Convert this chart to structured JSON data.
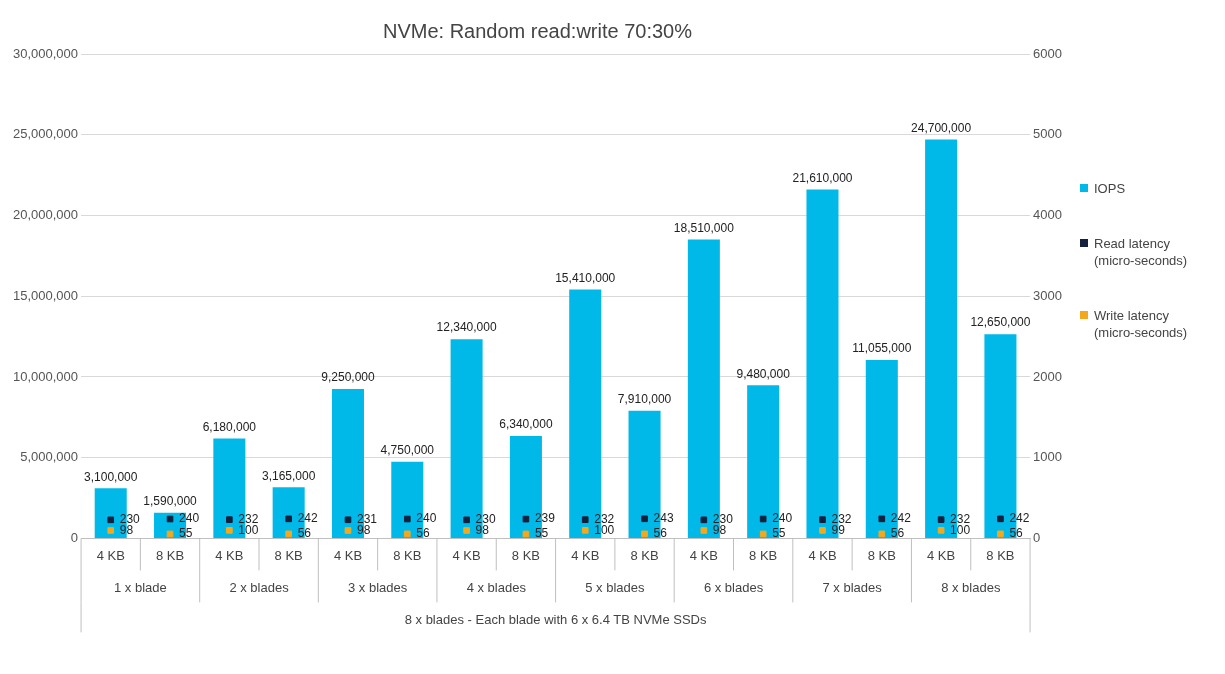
{
  "chart_data": {
    "type": "bar",
    "title": "NVMe: Random read:write 70:30%",
    "categories": [
      "4 KB",
      "8 KB",
      "4 KB",
      "8 KB",
      "4 KB",
      "8 KB",
      "4 KB",
      "8 KB",
      "4 KB",
      "8 KB",
      "4 KB",
      "8 KB",
      "4 KB",
      "8 KB",
      "4 KB",
      "8 KB"
    ],
    "xlabel": "8 x blades - Each blade with 6 x 6.4 TB NVMe SSDs",
    "annotations": [
      "1 x blade",
      "2 x blades",
      "3 x blades",
      "4 x blades",
      "5 x blades",
      "6 x blades",
      "7 x blades",
      "8 x blades"
    ],
    "series": [
      {
        "name": "IOPS",
        "color": "#00b9e8",
        "values": [
          3100000,
          1590000,
          6180000,
          3165000,
          9250000,
          4750000,
          12340000,
          6340000,
          15410000,
          7910000,
          18510000,
          9480000,
          21610000,
          11055000,
          24700000,
          12650000
        ],
        "value_labels": [
          "3,100,000",
          "1,590,000",
          "6,180,000",
          "3,165,000",
          "9,250,000",
          "4,750,000",
          "12,340,000",
          "6,340,000",
          "15,410,000",
          "7,910,000",
          "18,510,000",
          "9,480,000",
          "21,610,000",
          "11,055,000",
          "24,700,000",
          "12,650,000"
        ]
      },
      {
        "name": "Read latency (micro-seconds)",
        "type": "scatter",
        "axis": "y2",
        "color": "#14213d",
        "values": [
          230,
          240,
          232,
          242,
          231,
          240,
          230,
          239,
          232,
          243,
          230,
          240,
          232,
          242,
          232,
          242
        ],
        "value_labels": [
          "230",
          "240",
          "232",
          "242",
          "231",
          "240",
          "230",
          "239",
          "232",
          "243",
          "230",
          "240",
          "232",
          "242",
          "232",
          "242"
        ]
      },
      {
        "name": "Write latency (micro-seconds)",
        "type": "scatter",
        "axis": "y2",
        "color": "#f5a81c",
        "values": [
          98,
          55,
          100,
          56,
          98,
          56,
          98,
          55,
          100,
          56,
          98,
          55,
          99,
          56,
          100,
          56
        ],
        "value_labels": [
          "98",
          "55",
          "100",
          "56",
          "98",
          "56",
          "98",
          "55",
          "100",
          "56",
          "98",
          "55",
          "99",
          "56",
          "100",
          "56"
        ]
      }
    ],
    "ylim": [
      0,
      30000000
    ],
    "yticks": [
      {
        "value": 0,
        "label": "0"
      },
      {
        "value": 5000000,
        "label": "5,000,000"
      },
      {
        "value": 10000000,
        "label": "10,000,000"
      },
      {
        "value": 15000000,
        "label": "15,000,000"
      },
      {
        "value": 20000000,
        "label": "20,000,000"
      },
      {
        "value": 25000000,
        "label": "25,000,000"
      },
      {
        "value": 30000000,
        "label": "30,000,000"
      }
    ],
    "y2lim": [
      0,
      6000
    ],
    "y2ticks": [
      0,
      1000,
      2000,
      3000,
      4000,
      5000,
      6000
    ],
    "grid": "y",
    "legend": "right",
    "marker": "square"
  }
}
